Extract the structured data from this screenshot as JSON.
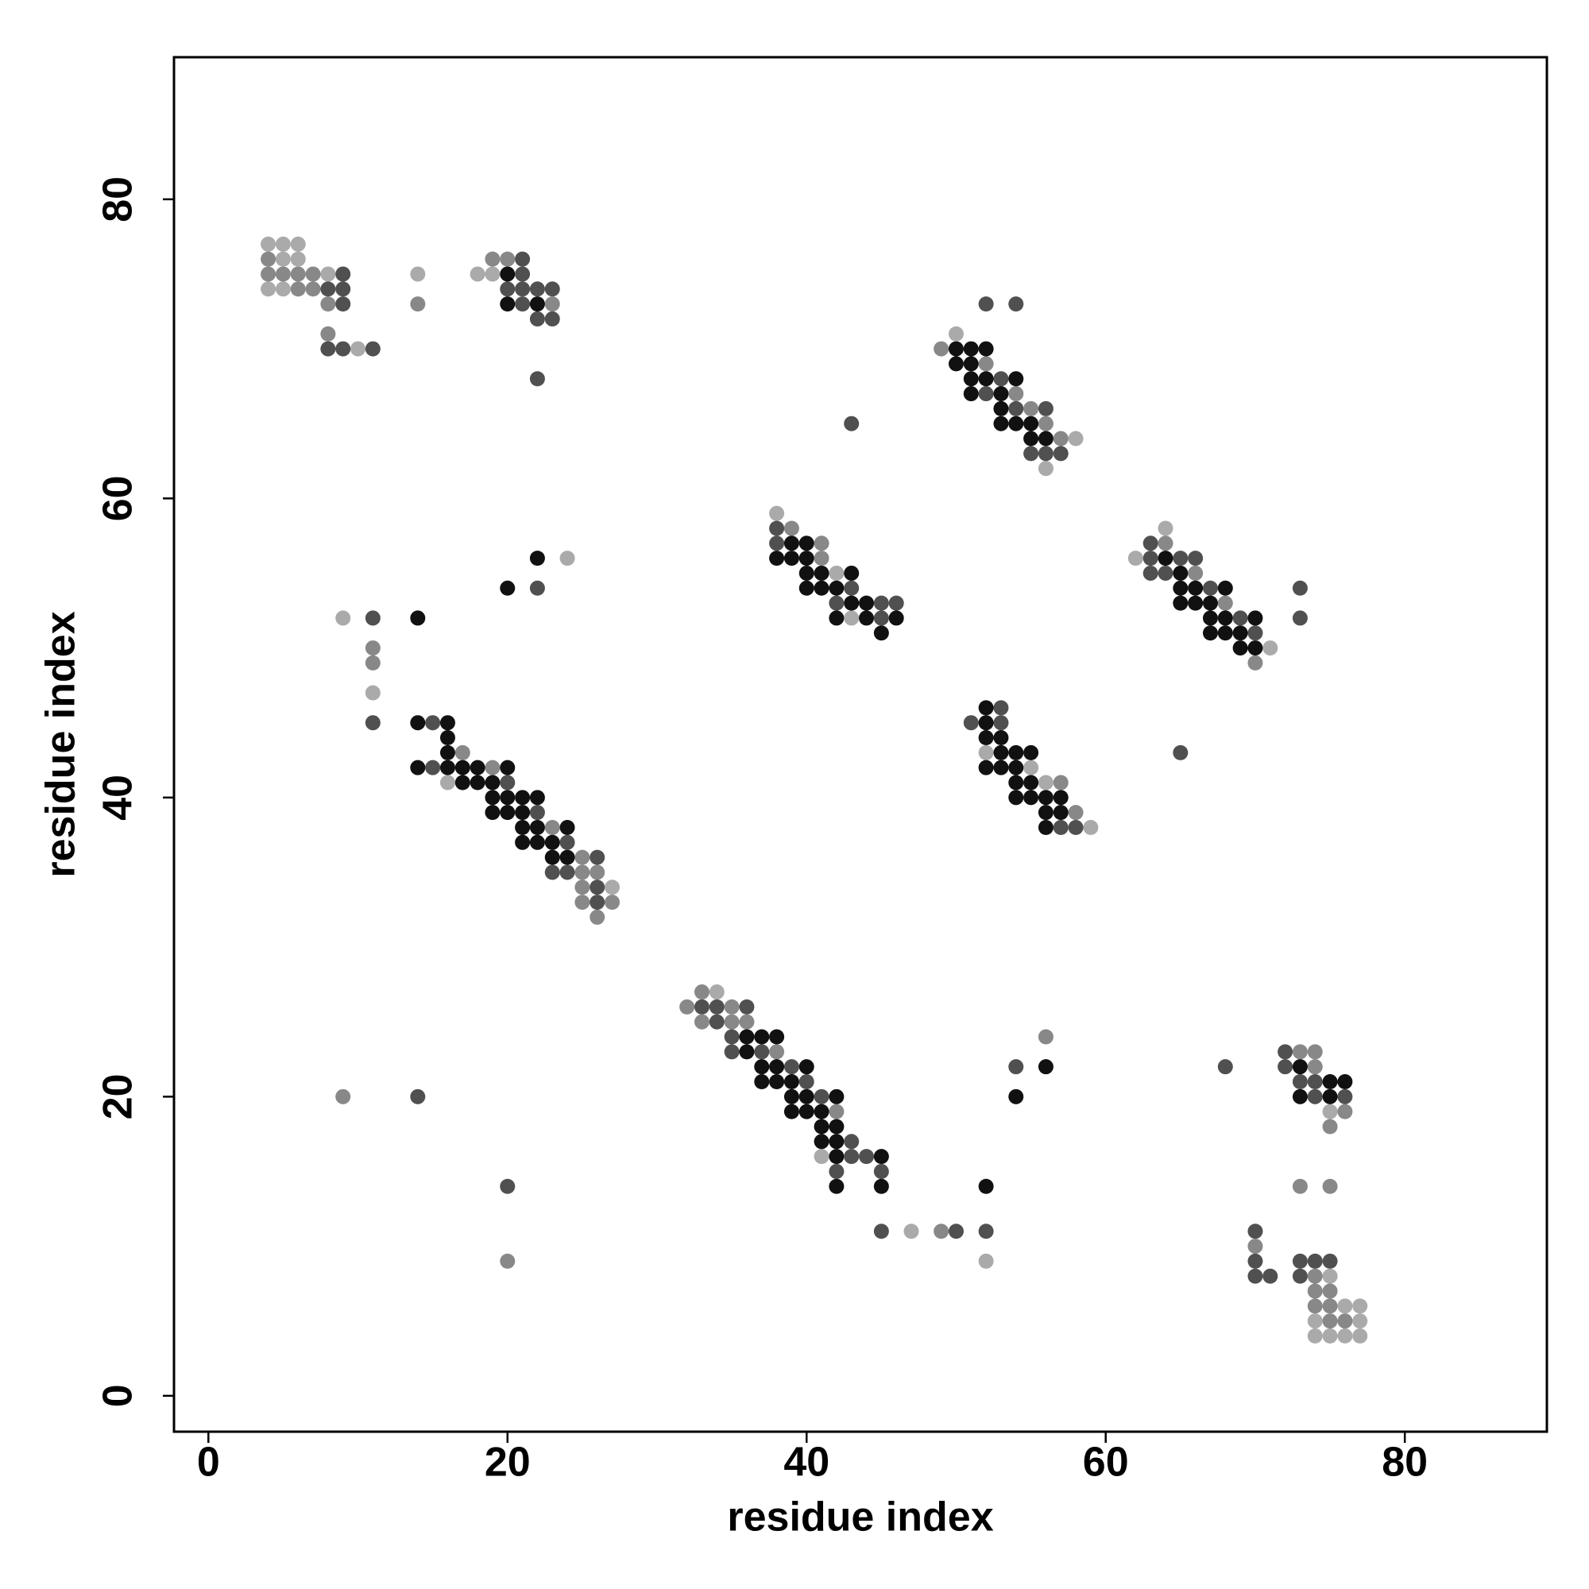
{
  "chart_data": {
    "type": "scatter",
    "xlabel": "residue index",
    "ylabel": "residue index",
    "xlim": [
      -2.3,
      89.5
    ],
    "ylim": [
      -2.4,
      89.5
    ],
    "xticks": [
      0,
      20,
      40,
      60,
      80
    ],
    "yticks": [
      0,
      20,
      40,
      60,
      80
    ],
    "series": [
      {
        "color": "#aaaaaa",
        "points": [
          [
            4,
            77
          ],
          [
            5,
            77
          ],
          [
            6,
            77
          ],
          [
            5,
            76
          ],
          [
            6,
            76
          ],
          [
            8,
            75
          ],
          [
            4,
            74
          ],
          [
            5,
            74
          ],
          [
            10,
            70
          ],
          [
            14,
            75
          ],
          [
            18,
            75
          ],
          [
            19,
            75
          ],
          [
            50,
            71
          ],
          [
            58,
            64
          ],
          [
            56,
            62
          ],
          [
            38,
            59
          ],
          [
            42,
            55
          ],
          [
            43,
            52
          ],
          [
            64,
            58
          ],
          [
            62,
            56
          ],
          [
            71,
            50
          ],
          [
            52,
            43
          ],
          [
            55,
            42
          ],
          [
            56,
            41
          ],
          [
            59,
            38
          ],
          [
            24,
            56
          ],
          [
            9,
            52
          ],
          [
            11,
            47
          ],
          [
            16,
            41
          ],
          [
            27,
            34
          ],
          [
            34,
            27
          ],
          [
            41,
            16
          ],
          [
            47,
            11
          ],
          [
            52,
            9
          ],
          [
            75,
            19
          ],
          [
            75,
            8
          ],
          [
            76,
            6
          ],
          [
            77,
            6
          ],
          [
            74,
            5
          ],
          [
            77,
            5
          ],
          [
            74,
            4
          ],
          [
            75,
            4
          ],
          [
            76,
            4
          ],
          [
            77,
            4
          ]
        ]
      },
      {
        "color": "#888888",
        "points": [
          [
            4,
            76
          ],
          [
            4,
            75
          ],
          [
            5,
            75
          ],
          [
            6,
            75
          ],
          [
            7,
            75
          ],
          [
            6,
            74
          ],
          [
            7,
            74
          ],
          [
            8,
            73
          ],
          [
            8,
            71
          ],
          [
            14,
            73
          ],
          [
            19,
            76
          ],
          [
            20,
            76
          ],
          [
            23,
            73
          ],
          [
            49,
            70
          ],
          [
            52,
            69
          ],
          [
            54,
            67
          ],
          [
            55,
            66
          ],
          [
            56,
            65
          ],
          [
            57,
            64
          ],
          [
            39,
            58
          ],
          [
            41,
            57
          ],
          [
            41,
            56
          ],
          [
            66,
            55
          ],
          [
            68,
            53
          ],
          [
            64,
            57
          ],
          [
            70,
            49
          ],
          [
            11,
            50
          ],
          [
            11,
            49
          ],
          [
            17,
            43
          ],
          [
            19,
            42
          ],
          [
            23,
            38
          ],
          [
            25,
            36
          ],
          [
            25,
            35
          ],
          [
            26,
            35
          ],
          [
            25,
            34
          ],
          [
            25,
            33
          ],
          [
            27,
            33
          ],
          [
            26,
            32
          ],
          [
            57,
            41
          ],
          [
            58,
            39
          ],
          [
            33,
            27
          ],
          [
            32,
            26
          ],
          [
            35,
            26
          ],
          [
            33,
            25
          ],
          [
            35,
            25
          ],
          [
            36,
            25
          ],
          [
            38,
            23
          ],
          [
            42,
            19
          ],
          [
            49,
            11
          ],
          [
            56,
            24
          ],
          [
            9,
            20
          ],
          [
            20,
            9
          ],
          [
            73,
            23
          ],
          [
            74,
            23
          ],
          [
            74,
            22
          ],
          [
            76,
            19
          ],
          [
            75,
            18
          ],
          [
            73,
            14
          ],
          [
            75,
            14
          ],
          [
            70,
            10
          ],
          [
            74,
            8
          ],
          [
            74,
            7
          ],
          [
            75,
            7
          ],
          [
            74,
            6
          ],
          [
            75,
            6
          ],
          [
            75,
            5
          ],
          [
            76,
            5
          ]
        ]
      },
      {
        "color": "#505050",
        "points": [
          [
            9,
            75
          ],
          [
            8,
            74
          ],
          [
            9,
            74
          ],
          [
            9,
            73
          ],
          [
            8,
            70
          ],
          [
            9,
            70
          ],
          [
            11,
            70
          ],
          [
            21,
            76
          ],
          [
            21,
            75
          ],
          [
            20,
            74
          ],
          [
            21,
            74
          ],
          [
            22,
            74
          ],
          [
            23,
            74
          ],
          [
            21,
            73
          ],
          [
            22,
            72
          ],
          [
            23,
            72
          ],
          [
            22,
            68
          ],
          [
            43,
            65
          ],
          [
            52,
            73
          ],
          [
            54,
            73
          ],
          [
            53,
            68
          ],
          [
            52,
            67
          ],
          [
            54,
            66
          ],
          [
            56,
            66
          ],
          [
            55,
            63
          ],
          [
            56,
            63
          ],
          [
            57,
            63
          ],
          [
            38,
            58
          ],
          [
            38,
            57
          ],
          [
            43,
            54
          ],
          [
            42,
            53
          ],
          [
            45,
            53
          ],
          [
            46,
            53
          ],
          [
            45,
            52
          ],
          [
            63,
            57
          ],
          [
            63,
            56
          ],
          [
            65,
            56
          ],
          [
            66,
            56
          ],
          [
            63,
            55
          ],
          [
            64,
            55
          ],
          [
            67,
            54
          ],
          [
            73,
            54
          ],
          [
            69,
            52
          ],
          [
            73,
            52
          ],
          [
            70,
            51
          ],
          [
            65,
            43
          ],
          [
            53,
            46
          ],
          [
            51,
            45
          ],
          [
            53,
            45
          ],
          [
            57,
            38
          ],
          [
            58,
            38
          ],
          [
            22,
            54
          ],
          [
            11,
            52
          ],
          [
            11,
            45
          ],
          [
            15,
            45
          ],
          [
            15,
            42
          ],
          [
            20,
            41
          ],
          [
            22,
            39
          ],
          [
            24,
            37
          ],
          [
            26,
            36
          ],
          [
            23,
            35
          ],
          [
            24,
            35
          ],
          [
            26,
            34
          ],
          [
            26,
            33
          ],
          [
            33,
            26
          ],
          [
            34,
            26
          ],
          [
            36,
            26
          ],
          [
            34,
            25
          ],
          [
            35,
            24
          ],
          [
            35,
            23
          ],
          [
            37,
            23
          ],
          [
            39,
            22
          ],
          [
            40,
            21
          ],
          [
            41,
            20
          ],
          [
            43,
            17
          ],
          [
            43,
            16
          ],
          [
            44,
            16
          ],
          [
            42,
            15
          ],
          [
            45,
            15
          ],
          [
            45,
            11
          ],
          [
            50,
            11
          ],
          [
            52,
            11
          ],
          [
            54,
            22
          ],
          [
            68,
            22
          ],
          [
            14,
            20
          ],
          [
            20,
            14
          ],
          [
            72,
            23
          ],
          [
            72,
            22
          ],
          [
            73,
            21
          ],
          [
            74,
            21
          ],
          [
            74,
            20
          ],
          [
            76,
            20
          ],
          [
            70,
            11
          ],
          [
            70,
            9
          ],
          [
            73,
            9
          ],
          [
            74,
            9
          ],
          [
            75,
            9
          ],
          [
            70,
            8
          ],
          [
            71,
            8
          ],
          [
            73,
            8
          ]
        ]
      },
      {
        "color": "#111111",
        "points": [
          [
            20,
            75
          ],
          [
            20,
            73
          ],
          [
            22,
            73
          ],
          [
            50,
            70
          ],
          [
            51,
            70
          ],
          [
            52,
            70
          ],
          [
            50,
            69
          ],
          [
            51,
            69
          ],
          [
            51,
            68
          ],
          [
            52,
            68
          ],
          [
            54,
            68
          ],
          [
            51,
            67
          ],
          [
            53,
            67
          ],
          [
            53,
            66
          ],
          [
            53,
            65
          ],
          [
            54,
            65
          ],
          [
            55,
            65
          ],
          [
            55,
            64
          ],
          [
            56,
            64
          ],
          [
            38,
            56
          ],
          [
            39,
            56
          ],
          [
            40,
            56
          ],
          [
            39,
            57
          ],
          [
            40,
            57
          ],
          [
            40,
            55
          ],
          [
            41,
            55
          ],
          [
            43,
            55
          ],
          [
            40,
            54
          ],
          [
            41,
            54
          ],
          [
            42,
            54
          ],
          [
            43,
            53
          ],
          [
            44,
            53
          ],
          [
            42,
            52
          ],
          [
            44,
            52
          ],
          [
            46,
            52
          ],
          [
            45,
            51
          ],
          [
            64,
            56
          ],
          [
            65,
            55
          ],
          [
            65,
            54
          ],
          [
            66,
            54
          ],
          [
            68,
            54
          ],
          [
            65,
            53
          ],
          [
            66,
            53
          ],
          [
            67,
            53
          ],
          [
            67,
            52
          ],
          [
            68,
            52
          ],
          [
            70,
            52
          ],
          [
            67,
            51
          ],
          [
            68,
            51
          ],
          [
            69,
            51
          ],
          [
            69,
            50
          ],
          [
            70,
            50
          ],
          [
            52,
            46
          ],
          [
            52,
            45
          ],
          [
            52,
            44
          ],
          [
            53,
            44
          ],
          [
            53,
            43
          ],
          [
            54,
            43
          ],
          [
            55,
            43
          ],
          [
            52,
            42
          ],
          [
            53,
            42
          ],
          [
            54,
            42
          ],
          [
            54,
            41
          ],
          [
            55,
            41
          ],
          [
            54,
            40
          ],
          [
            55,
            40
          ],
          [
            56,
            40
          ],
          [
            57,
            40
          ],
          [
            56,
            39
          ],
          [
            57,
            39
          ],
          [
            56,
            38
          ],
          [
            22,
            56
          ],
          [
            20,
            54
          ],
          [
            14,
            52
          ],
          [
            14,
            45
          ],
          [
            16,
            45
          ],
          [
            16,
            44
          ],
          [
            16,
            43
          ],
          [
            14,
            42
          ],
          [
            16,
            42
          ],
          [
            17,
            42
          ],
          [
            18,
            42
          ],
          [
            20,
            42
          ],
          [
            17,
            41
          ],
          [
            18,
            41
          ],
          [
            19,
            41
          ],
          [
            19,
            40
          ],
          [
            20,
            40
          ],
          [
            21,
            40
          ],
          [
            22,
            40
          ],
          [
            19,
            39
          ],
          [
            20,
            39
          ],
          [
            21,
            39
          ],
          [
            21,
            38
          ],
          [
            22,
            38
          ],
          [
            24,
            38
          ],
          [
            21,
            37
          ],
          [
            22,
            37
          ],
          [
            23,
            37
          ],
          [
            23,
            36
          ],
          [
            24,
            36
          ],
          [
            36,
            24
          ],
          [
            37,
            24
          ],
          [
            38,
            24
          ],
          [
            36,
            23
          ],
          [
            37,
            22
          ],
          [
            38,
            22
          ],
          [
            40,
            22
          ],
          [
            37,
            21
          ],
          [
            38,
            21
          ],
          [
            39,
            21
          ],
          [
            39,
            20
          ],
          [
            40,
            20
          ],
          [
            42,
            20
          ],
          [
            39,
            19
          ],
          [
            40,
            19
          ],
          [
            41,
            19
          ],
          [
            41,
            18
          ],
          [
            42,
            18
          ],
          [
            41,
            17
          ],
          [
            42,
            17
          ],
          [
            42,
            16
          ],
          [
            45,
            16
          ],
          [
            42,
            14
          ],
          [
            45,
            14
          ],
          [
            52,
            14
          ],
          [
            56,
            22
          ],
          [
            54,
            20
          ],
          [
            73,
            22
          ],
          [
            75,
            21
          ],
          [
            76,
            21
          ],
          [
            73,
            20
          ],
          [
            75,
            20
          ]
        ]
      }
    ]
  }
}
